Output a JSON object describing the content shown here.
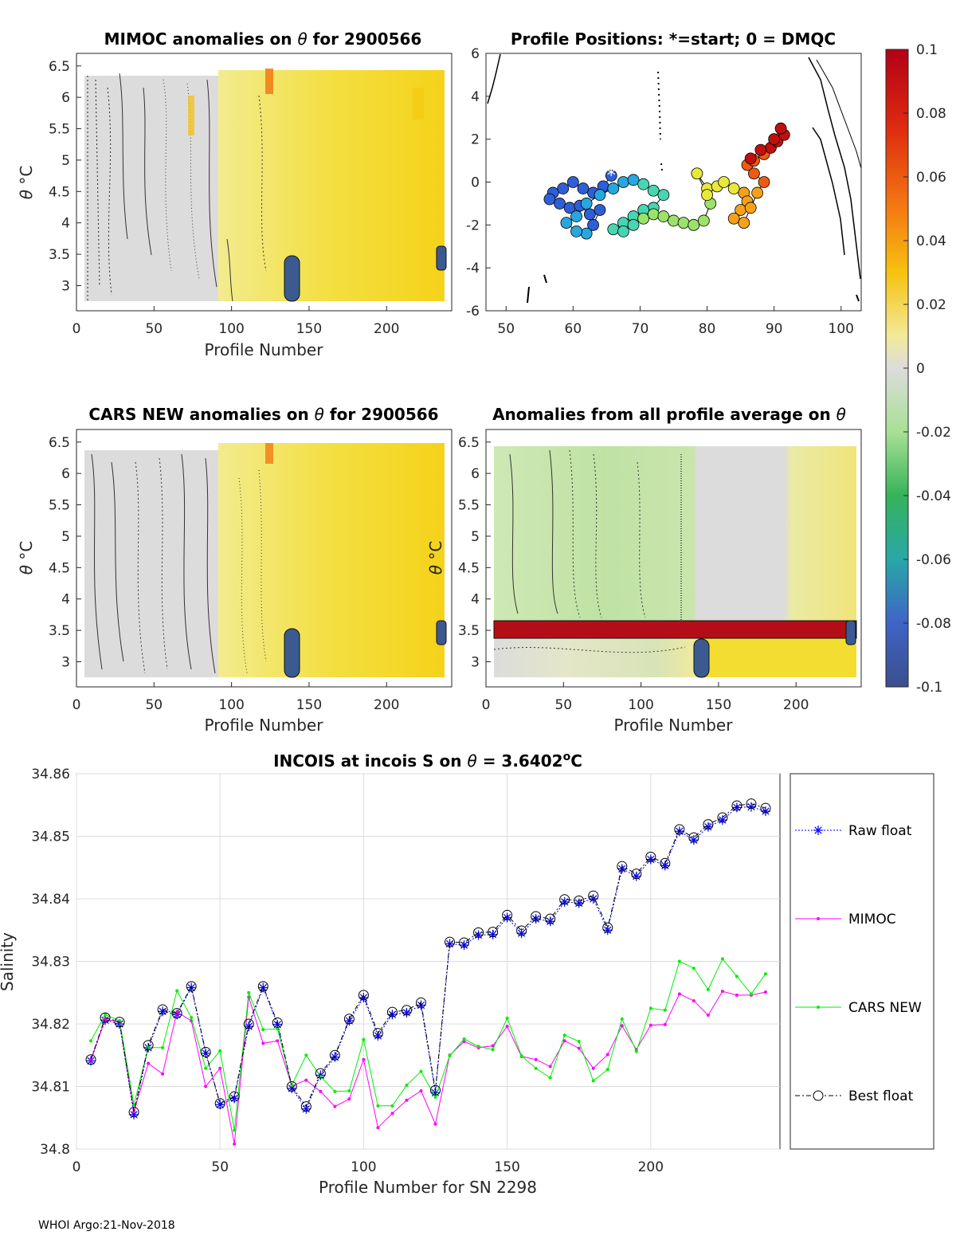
{
  "footer": "WHOI Argo:21-Nov-2018",
  "colorbar": {
    "ticks": [
      "0.1",
      "0.08",
      "0.06",
      "0.04",
      "0.02",
      "0",
      "-0.02",
      "-0.04",
      "-0.06",
      "-0.08",
      "-0.1"
    ],
    "range": [
      -0.1,
      0.1
    ]
  },
  "chart_data": [
    {
      "type": "heatmap",
      "id": "mimoc",
      "title_pre": "MIMOC anomalies on ",
      "title_sym": "θ",
      "title_post": "  for 2900566",
      "xlabel": "Profile Number",
      "ylabel_sym": "θ",
      "ylabel_unit": "°C",
      "xlim": [
        0,
        242
      ],
      "ylim": [
        2.6,
        6.7
      ],
      "xticks": [
        "0",
        "50",
        "100",
        "150",
        "200"
      ],
      "yticks": [
        "3",
        "3.5",
        "4",
        "4.5",
        "5",
        "5.5",
        "6",
        "6.5"
      ],
      "description_values": {
        "left_half_anomaly": 0.0,
        "right_half_anomaly": 0.03,
        "max_anomaly": 0.07
      }
    },
    {
      "type": "scatter",
      "id": "positions",
      "title": "Profile Positions: *=start; 0 = DMQC",
      "xlim": [
        47,
        103
      ],
      "ylim": [
        -6,
        6
      ],
      "xticks": [
        "50",
        "60",
        "70",
        "80",
        "90",
        "100"
      ],
      "yticks": [
        "6",
        "4",
        "2",
        "0",
        "-2",
        "-4",
        "-6"
      ],
      "track": [
        [
          65.7,
          0.3
        ],
        [
          64.5,
          -0.2
        ],
        [
          63,
          -0.5
        ],
        [
          61.5,
          -0.3
        ],
        [
          60,
          0.0
        ],
        [
          58.5,
          -0.3
        ],
        [
          57,
          -0.5
        ],
        [
          56.5,
          -0.8
        ],
        [
          58,
          -1.0
        ],
        [
          59.5,
          -1.2
        ],
        [
          61,
          -1.1
        ],
        [
          62.5,
          -1.5
        ],
        [
          64,
          -1.3
        ],
        [
          63,
          -2.0
        ],
        [
          62,
          -2.4
        ],
        [
          60.5,
          -2.3
        ],
        [
          59,
          -1.9
        ],
        [
          60.5,
          -1.6
        ],
        [
          62,
          -1.0
        ],
        [
          64,
          -0.6
        ],
        [
          66,
          -0.3
        ],
        [
          67.5,
          0.0
        ],
        [
          69,
          0.1
        ],
        [
          70.5,
          -0.1
        ],
        [
          72,
          -0.4
        ],
        [
          73.5,
          -0.6
        ],
        [
          72,
          -1.2
        ],
        [
          70.5,
          -1.3
        ],
        [
          69,
          -1.6
        ],
        [
          67.5,
          -1.9
        ],
        [
          66,
          -2.2
        ],
        [
          67.5,
          -2.3
        ],
        [
          69,
          -2.0
        ],
        [
          70.5,
          -1.7
        ],
        [
          72,
          -1.5
        ],
        [
          73.5,
          -1.6
        ],
        [
          75,
          -1.8
        ],
        [
          76.5,
          -1.9
        ],
        [
          78,
          -2.0
        ],
        [
          79.5,
          -1.8
        ],
        [
          80.5,
          -1.0
        ],
        [
          80,
          -0.3
        ],
        [
          78.5,
          0.4
        ],
        [
          80,
          -0.6
        ],
        [
          81.5,
          -0.2
        ],
        [
          82.5,
          0.0
        ],
        [
          84,
          -0.3
        ],
        [
          85.5,
          -0.5
        ],
        [
          86,
          -0.9
        ],
        [
          85,
          -1.3
        ],
        [
          84,
          -1.7
        ],
        [
          85.5,
          -1.9
        ],
        [
          86.5,
          -1.2
        ],
        [
          87.5,
          -0.5
        ],
        [
          88.5,
          0.0
        ],
        [
          87,
          0.4
        ],
        [
          86,
          0.8
        ],
        [
          87,
          1.0
        ],
        [
          88.5,
          1.3
        ],
        [
          89.5,
          1.6
        ],
        [
          90.5,
          1.9
        ],
        [
          91.5,
          2.2
        ],
        [
          91,
          2.5
        ],
        [
          90,
          2.0
        ],
        [
          88,
          1.5
        ],
        [
          86.5,
          1.1
        ]
      ]
    },
    {
      "type": "heatmap",
      "id": "cars",
      "title_pre": "CARS NEW anomalies on ",
      "title_sym": "θ",
      "title_post": " for 2900566",
      "xlabel": "Profile Number",
      "ylabel_sym": "θ",
      "ylabel_unit": "°C",
      "xlim": [
        0,
        242
      ],
      "ylim": [
        2.6,
        6.7
      ],
      "xticks": [
        "0",
        "50",
        "100",
        "150",
        "200"
      ],
      "yticks": [
        "3",
        "3.5",
        "4",
        "4.5",
        "5",
        "5.5",
        "6",
        "6.5"
      ]
    },
    {
      "type": "heatmap",
      "id": "allprof",
      "title_pre": "Anomalies from all profile average on ",
      "title_sym": "θ",
      "title_post": "",
      "xlabel": "Profile Number",
      "ylabel_sym": "θ",
      "ylabel_unit": "°C",
      "xlim": [
        0,
        242
      ],
      "ylim": [
        2.6,
        6.7
      ],
      "xticks": [
        "0",
        "50",
        "100",
        "150",
        "200"
      ],
      "yticks": [
        "3",
        "3.5",
        "4",
        "4.5",
        "5",
        "5.5",
        "6",
        "6.5"
      ],
      "band_theta": [
        3.38,
        3.65
      ],
      "band_anomaly": 0.1
    },
    {
      "type": "line",
      "id": "salinity",
      "title_pre": "INCOIS at incois S on ",
      "title_sym": "θ",
      "title_post": " = 3.6402",
      "title_unit_sup": "o",
      "title_unit": "C",
      "xlabel": "Profile Number for SN 2298",
      "ylabel": "Salinity",
      "xlim": [
        0,
        245
      ],
      "ylim": [
        34.8,
        34.86
      ],
      "xticks": [
        0,
        50,
        100,
        150,
        200
      ],
      "yticks": [
        34.8,
        34.81,
        34.82,
        34.83,
        34.84,
        34.85,
        34.86
      ],
      "ytick_labels": [
        "34.8",
        "34.81",
        "34.82",
        "34.83",
        "34.84",
        "34.85",
        "34.86"
      ],
      "x": [
        5,
        10,
        15,
        20,
        25,
        30,
        35,
        40,
        45,
        50,
        55,
        60,
        65,
        70,
        75,
        80,
        85,
        90,
        95,
        100,
        105,
        110,
        115,
        120,
        125,
        130,
        135,
        140,
        145,
        150,
        155,
        160,
        165,
        170,
        175,
        180,
        185,
        190,
        195,
        200,
        205,
        210,
        215,
        220,
        225,
        230,
        235,
        240
      ],
      "series": [
        {
          "name": "Raw float",
          "color": "#0000ff",
          "values": [
            34.8141,
            34.8206,
            34.82,
            34.8055,
            34.8162,
            34.822,
            34.8215,
            34.8258,
            34.8153,
            34.8071,
            34.8081,
            34.8196,
            34.8258,
            34.8199,
            34.8097,
            34.8064,
            34.8118,
            34.8147,
            34.8205,
            34.8242,
            34.8181,
            34.8215,
            34.8218,
            34.823,
            34.809,
            34.8328,
            34.8326,
            34.8342,
            34.8343,
            34.837,
            34.8345,
            34.8368,
            34.8364,
            34.8395,
            34.8393,
            34.84,
            34.835,
            34.8448,
            34.8436,
            34.8463,
            34.8453,
            34.8508,
            34.8494,
            34.8515,
            34.8526,
            34.8546,
            34.8547,
            34.854
          ]
        },
        {
          "name": "MIMOC",
          "color": "#ff00ff",
          "values": [
            34.8143,
            34.8207,
            34.8204,
            34.806,
            34.8137,
            34.812,
            34.8219,
            34.8205,
            34.81,
            34.8129,
            34.8008,
            34.8243,
            34.8169,
            34.8173,
            34.8101,
            34.811,
            34.8092,
            34.8068,
            34.808,
            34.8143,
            34.8034,
            34.8057,
            34.8078,
            34.8093,
            34.804,
            34.815,
            34.8172,
            34.8162,
            34.8165,
            34.8196,
            34.8148,
            34.8143,
            34.8132,
            34.8173,
            34.8161,
            34.8129,
            34.8151,
            34.8197,
            34.8159,
            34.8198,
            34.8199,
            34.8248,
            34.8237,
            34.8214,
            34.8252,
            34.8246,
            34.8246,
            34.8251
          ]
        },
        {
          "name": "CARS NEW",
          "color": "#00ee00",
          "values": [
            34.8173,
            34.8215,
            34.8205,
            34.8071,
            34.8162,
            34.8162,
            34.8253,
            34.821,
            34.8129,
            34.8157,
            34.803,
            34.825,
            34.8191,
            34.8192,
            34.8102,
            34.815,
            34.8116,
            34.8092,
            34.8093,
            34.8175,
            34.8069,
            34.8069,
            34.8102,
            34.8124,
            34.8083,
            34.8149,
            34.8176,
            34.8164,
            34.8159,
            34.8209,
            34.8149,
            34.8129,
            34.8114,
            34.8182,
            34.8172,
            34.8109,
            34.8127,
            34.8208,
            34.8156,
            34.8225,
            34.8222,
            34.83,
            34.8289,
            34.8255,
            34.8304,
            34.8276,
            34.8248,
            34.828
          ]
        },
        {
          "name": "Best float",
          "color": "#000000",
          "values": [
            34.8143,
            34.821,
            34.8203,
            34.8059,
            34.8166,
            34.8223,
            34.8217,
            34.826,
            34.8155,
            34.8073,
            34.8084,
            34.82,
            34.826,
            34.8202,
            34.81,
            34.8068,
            34.8121,
            34.815,
            34.8208,
            34.8246,
            34.8185,
            34.8219,
            34.8222,
            34.8234,
            34.8094,
            34.8331,
            34.833,
            34.8346,
            34.8347,
            34.8374,
            34.8349,
            34.8372,
            34.8368,
            34.8399,
            34.8397,
            34.8405,
            34.8354,
            34.8452,
            34.844,
            34.8467,
            34.8457,
            34.8511,
            34.8498,
            34.8519,
            34.853,
            34.8549,
            34.8552,
            34.8545
          ]
        }
      ],
      "legend": [
        "Raw float",
        "MIMOC",
        "CARS NEW",
        "Best float"
      ]
    }
  ]
}
